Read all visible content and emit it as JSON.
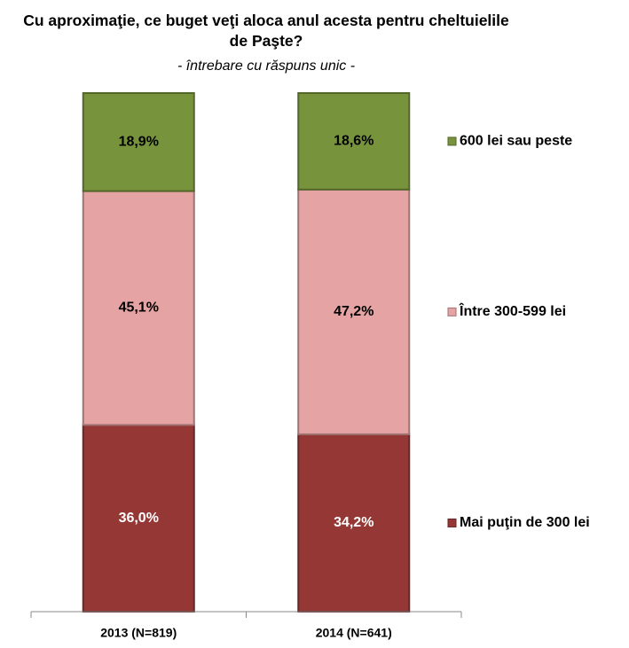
{
  "chart_data": {
    "type": "stacked_bar",
    "title": "Cu aproximaţie, ce buget veţi aloca anul acesta pentru cheltuielile de Paşte?",
    "subtitle": "- întrebare cu răspuns unic -",
    "categories": [
      "2013 (N=819)",
      "2014 (N=641)"
    ],
    "series": [
      {
        "name": "Mai puţin de 300 lei",
        "color": "#953735",
        "values": [
          36.0,
          34.2
        ],
        "value_labels": [
          "36,0%",
          "34,2%"
        ]
      },
      {
        "name": "Între 300-599 lei",
        "color": "#e6a3a3",
        "values": [
          45.1,
          47.2
        ],
        "value_labels": [
          "45,1%",
          "47,2%"
        ]
      },
      {
        "name": "600 lei sau peste",
        "color": "#77933c",
        "values": [
          18.9,
          18.6
        ],
        "value_labels": [
          "18,9%",
          "18,6%"
        ]
      }
    ],
    "legend": "right"
  }
}
